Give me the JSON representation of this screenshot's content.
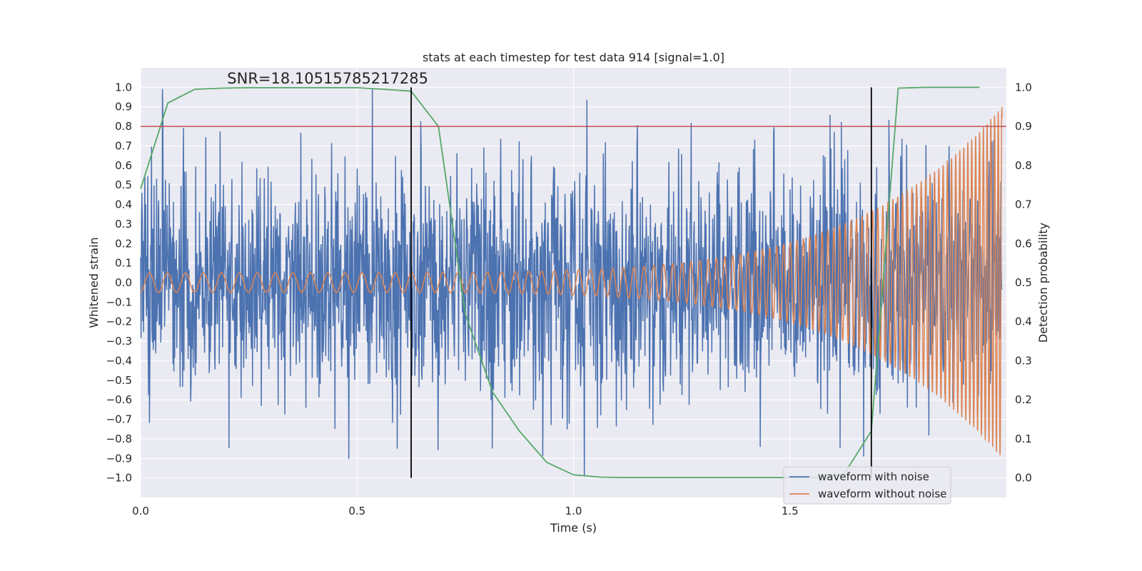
{
  "chart_data": {
    "type": "line",
    "title": "stats at each timestep for test data 914 [signal=1.0]",
    "xlabel": "Time (s)",
    "ylabel": "Whitened strain",
    "ylabel_right": "Detection probability",
    "xlim": [
      0.0,
      2.0
    ],
    "ylim": [
      -1.1,
      1.1
    ],
    "ylim_right": [
      -0.05,
      1.05
    ],
    "xticks": [
      "0.0",
      "0.5",
      "1.0",
      "1.5"
    ],
    "xtick_values": [
      0.0,
      0.5,
      1.0,
      1.5
    ],
    "yticks": [
      "-1.0",
      "-0.9",
      "-0.8",
      "-0.7",
      "-0.6",
      "-0.5",
      "-0.4",
      "-0.3",
      "-0.2",
      "-0.1",
      "0.0",
      "0.1",
      "0.2",
      "0.3",
      "0.4",
      "0.5",
      "0.6",
      "0.7",
      "0.8",
      "0.9",
      "1.0"
    ],
    "ytick_values": [
      -1.0,
      -0.9,
      -0.8,
      -0.7,
      -0.6,
      -0.5,
      -0.4,
      -0.3,
      -0.2,
      -0.1,
      0.0,
      0.1,
      0.2,
      0.3,
      0.4,
      0.5,
      0.6,
      0.7,
      0.8,
      0.9,
      1.0
    ],
    "yticks_right": [
      "0.0",
      "0.1",
      "0.2",
      "0.3",
      "0.4",
      "0.5",
      "0.6",
      "0.7",
      "0.8",
      "0.9",
      "1.0"
    ],
    "ytick_values_right": [
      0.0,
      0.1,
      0.2,
      0.3,
      0.4,
      0.5,
      0.6,
      0.7,
      0.8,
      0.9,
      1.0
    ],
    "grid": true,
    "legend_placement": "lower right",
    "annotation": "SNR=18.10515785217285",
    "series": [
      {
        "name": "waveform with noise",
        "color": "#4c72b0",
        "axis": "left",
        "style": "noise",
        "t_range": [
          0.0,
          1.99
        ],
        "amplitude_std": 0.3,
        "clip": [
          -0.99,
          0.99
        ]
      },
      {
        "name": "waveform without noise",
        "color": "#dd8452",
        "axis": "left",
        "style": "chirp",
        "t_range": [
          0.0,
          1.99
        ],
        "amplitude_start": 0.05,
        "amplitude_end": 0.9,
        "frequency_start_hz": 24,
        "frequency_end_hz": 120
      },
      {
        "color": "#55a868",
        "axis": "right",
        "x": [
          0.0,
          0.063,
          0.125,
          0.188,
          0.25,
          0.313,
          0.375,
          0.438,
          0.5,
          0.563,
          0.625,
          0.688,
          0.75,
          0.813,
          0.875,
          0.938,
          1.0,
          1.063,
          1.125,
          1.188,
          1.25,
          1.313,
          1.375,
          1.438,
          1.5,
          1.563,
          1.625,
          1.688,
          1.75,
          1.813,
          1.875,
          1.938
        ],
        "values": [
          0.74,
          0.96,
          0.995,
          0.998,
          0.999,
          0.999,
          0.999,
          0.999,
          0.999,
          0.995,
          0.99,
          0.9,
          0.42,
          0.22,
          0.12,
          0.04,
          0.008,
          0.002,
          0.001,
          0.001,
          0.001,
          0.001,
          0.001,
          0.001,
          0.001,
          0.001,
          0.01,
          0.12,
          0.998,
          1.0,
          1.0,
          1.0
        ]
      }
    ],
    "hlines": [
      {
        "y": 0.8,
        "axis": "left",
        "color": "#c44e52"
      }
    ],
    "vlines": [
      {
        "x": 0.625,
        "y_range": [
          -1.0,
          1.0
        ],
        "color": "#000000"
      },
      {
        "x": 1.688,
        "y_range": [
          -1.0,
          1.0
        ],
        "color": "#000000"
      }
    ],
    "colors": {
      "plot_background": "#eaeaf2",
      "grid": "#ffffff",
      "text": "#262626"
    }
  }
}
